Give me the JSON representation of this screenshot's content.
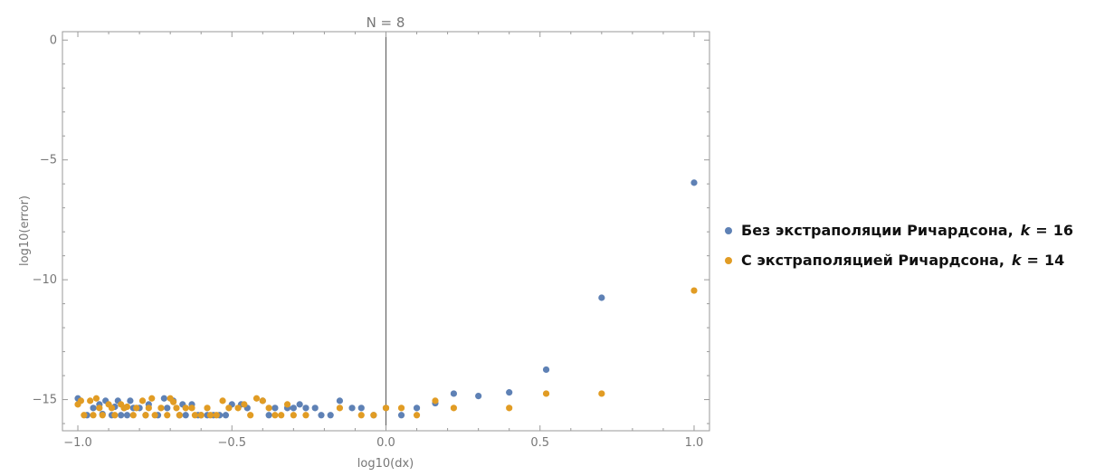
{
  "chart_data": {
    "type": "scatter",
    "title": "N = 8",
    "xlabel": "log10(dx)",
    "ylabel": "log10(error)",
    "xlim": [
      -1.05,
      1.05
    ],
    "ylim": [
      -16.3,
      0.35
    ],
    "x_ticks": [
      -1.0,
      -0.5,
      0.0,
      0.5,
      1.0
    ],
    "x_tick_labels": [
      "−1.0",
      "−0.5",
      "0.0",
      "0.5",
      "1.0"
    ],
    "y_ticks": [
      0,
      -5,
      -10,
      -15
    ],
    "y_tick_labels": [
      "0",
      "−5",
      "−10",
      "−15"
    ],
    "grid": false,
    "legend_position": "right",
    "series": [
      {
        "name": "Без экстраполяции Ричардсона,",
        "k_label": "k",
        "k_value": "16",
        "color": "#5E81B5",
        "points": [
          [
            -1.0,
            -14.95
          ],
          [
            -0.97,
            -15.65
          ],
          [
            -0.95,
            -15.35
          ],
          [
            -0.93,
            -15.2
          ],
          [
            -0.92,
            -15.6
          ],
          [
            -0.91,
            -15.05
          ],
          [
            -0.89,
            -15.65
          ],
          [
            -0.88,
            -15.3
          ],
          [
            -0.87,
            -15.05
          ],
          [
            -0.86,
            -15.65
          ],
          [
            -0.85,
            -15.35
          ],
          [
            -0.84,
            -15.65
          ],
          [
            -0.83,
            -15.05
          ],
          [
            -0.82,
            -15.35
          ],
          [
            -0.8,
            -15.35
          ],
          [
            -0.78,
            -15.65
          ],
          [
            -0.77,
            -15.2
          ],
          [
            -0.74,
            -15.65
          ],
          [
            -0.72,
            -14.95
          ],
          [
            -0.71,
            -15.35
          ],
          [
            -0.69,
            -15.05
          ],
          [
            -0.67,
            -15.65
          ],
          [
            -0.66,
            -15.2
          ],
          [
            -0.65,
            -15.65
          ],
          [
            -0.63,
            -15.2
          ],
          [
            -0.61,
            -15.65
          ],
          [
            -0.6,
            -15.65
          ],
          [
            -0.58,
            -15.65
          ],
          [
            -0.56,
            -15.65
          ],
          [
            -0.54,
            -15.65
          ],
          [
            -0.52,
            -15.65
          ],
          [
            -0.5,
            -15.2
          ],
          [
            -0.47,
            -15.2
          ],
          [
            -0.45,
            -15.35
          ],
          [
            -0.4,
            -15.05
          ],
          [
            -0.38,
            -15.65
          ],
          [
            -0.36,
            -15.35
          ],
          [
            -0.32,
            -15.35
          ],
          [
            -0.3,
            -15.35
          ],
          [
            -0.28,
            -15.2
          ],
          [
            -0.26,
            -15.35
          ],
          [
            -0.23,
            -15.35
          ],
          [
            -0.21,
            -15.65
          ],
          [
            -0.18,
            -15.65
          ],
          [
            -0.15,
            -15.05
          ],
          [
            -0.11,
            -15.35
          ],
          [
            -0.08,
            -15.35
          ],
          [
            -0.04,
            -15.65
          ],
          [
            0.0,
            -15.35
          ],
          [
            0.05,
            -15.65
          ],
          [
            0.1,
            -15.35
          ],
          [
            0.16,
            -15.15
          ],
          [
            0.22,
            -14.75
          ],
          [
            0.3,
            -14.85
          ],
          [
            0.4,
            -14.7
          ],
          [
            0.52,
            -13.75
          ],
          [
            0.7,
            -10.75
          ],
          [
            1.0,
            -5.95
          ]
        ]
      },
      {
        "name": "С экстраполяцией Ричардсона,",
        "k_label": "k",
        "k_value": "14",
        "color": "#E19C24",
        "points": [
          [
            -1.0,
            -15.2
          ],
          [
            -0.99,
            -15.05
          ],
          [
            -0.98,
            -15.65
          ],
          [
            -0.96,
            -15.05
          ],
          [
            -0.95,
            -15.65
          ],
          [
            -0.94,
            -14.95
          ],
          [
            -0.93,
            -15.35
          ],
          [
            -0.92,
            -15.65
          ],
          [
            -0.9,
            -15.2
          ],
          [
            -0.89,
            -15.35
          ],
          [
            -0.88,
            -15.65
          ],
          [
            -0.86,
            -15.2
          ],
          [
            -0.85,
            -15.35
          ],
          [
            -0.84,
            -15.3
          ],
          [
            -0.82,
            -15.65
          ],
          [
            -0.81,
            -15.35
          ],
          [
            -0.79,
            -15.05
          ],
          [
            -0.78,
            -15.65
          ],
          [
            -0.77,
            -15.35
          ],
          [
            -0.76,
            -14.95
          ],
          [
            -0.75,
            -15.65
          ],
          [
            -0.73,
            -15.35
          ],
          [
            -0.71,
            -15.65
          ],
          [
            -0.7,
            -14.95
          ],
          [
            -0.69,
            -15.1
          ],
          [
            -0.68,
            -15.35
          ],
          [
            -0.67,
            -15.65
          ],
          [
            -0.65,
            -15.35
          ],
          [
            -0.63,
            -15.35
          ],
          [
            -0.62,
            -15.65
          ],
          [
            -0.6,
            -15.65
          ],
          [
            -0.58,
            -15.35
          ],
          [
            -0.57,
            -15.65
          ],
          [
            -0.55,
            -15.65
          ],
          [
            -0.53,
            -15.05
          ],
          [
            -0.51,
            -15.35
          ],
          [
            -0.48,
            -15.35
          ],
          [
            -0.46,
            -15.2
          ],
          [
            -0.44,
            -15.65
          ],
          [
            -0.42,
            -14.95
          ],
          [
            -0.4,
            -15.05
          ],
          [
            -0.38,
            -15.35
          ],
          [
            -0.36,
            -15.65
          ],
          [
            -0.34,
            -15.65
          ],
          [
            -0.32,
            -15.2
          ],
          [
            -0.3,
            -15.65
          ],
          [
            -0.26,
            -15.65
          ],
          [
            -0.15,
            -15.35
          ],
          [
            -0.08,
            -15.65
          ],
          [
            -0.04,
            -15.65
          ],
          [
            0.0,
            -15.35
          ],
          [
            0.05,
            -15.35
          ],
          [
            0.1,
            -15.65
          ],
          [
            0.16,
            -15.05
          ],
          [
            0.22,
            -15.35
          ],
          [
            0.4,
            -15.35
          ],
          [
            0.52,
            -14.75
          ],
          [
            0.7,
            -14.75
          ],
          [
            1.0,
            -10.45
          ]
        ]
      }
    ]
  }
}
